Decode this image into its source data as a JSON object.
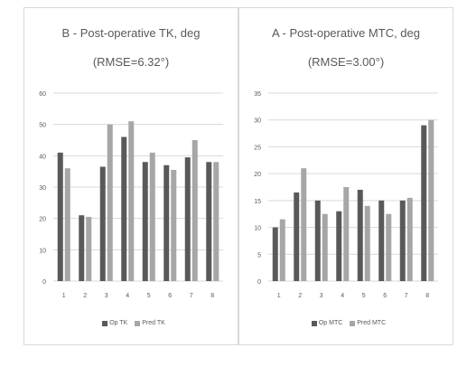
{
  "chart_data": [
    {
      "type": "bar",
      "title": "B - Post-operative TK, deg",
      "subtitle": "(RMSE=6.32°)",
      "categories": [
        "1",
        "2",
        "3",
        "4",
        "5",
        "6",
        "7",
        "8"
      ],
      "series": [
        {
          "name": "Op TK",
          "values": [
            41,
            21,
            36.5,
            46,
            38,
            37,
            39.5,
            38
          ],
          "color": "#595959"
        },
        {
          "name": "Pred TK",
          "values": [
            36,
            20.5,
            50,
            51,
            41,
            35.5,
            45,
            38
          ],
          "color": "#a6a6a6"
        }
      ],
      "ylim": [
        0,
        60
      ],
      "yticks": [
        "0",
        "10",
        "20",
        "30",
        "40",
        "50",
        "60"
      ],
      "grid": true,
      "legend": "bottom"
    },
    {
      "type": "bar",
      "title": "A - Post-operative MTC, deg",
      "subtitle": "(RMSE=3.00°)",
      "categories": [
        "1",
        "2",
        "3",
        "4",
        "5",
        "6",
        "7",
        "8"
      ],
      "series": [
        {
          "name": "Op MTC",
          "values": [
            10,
            16.5,
            15,
            13,
            17,
            15,
            15,
            29
          ],
          "color": "#595959"
        },
        {
          "name": "Pred MTC",
          "values": [
            11.5,
            21,
            12.5,
            17.5,
            14,
            12.5,
            15.5,
            30
          ],
          "color": "#a6a6a6"
        }
      ],
      "ylim": [
        0,
        35
      ],
      "yticks": [
        "0",
        "5",
        "10",
        "15",
        "20",
        "25",
        "30",
        "35"
      ],
      "grid": true,
      "legend": "bottom"
    }
  ]
}
